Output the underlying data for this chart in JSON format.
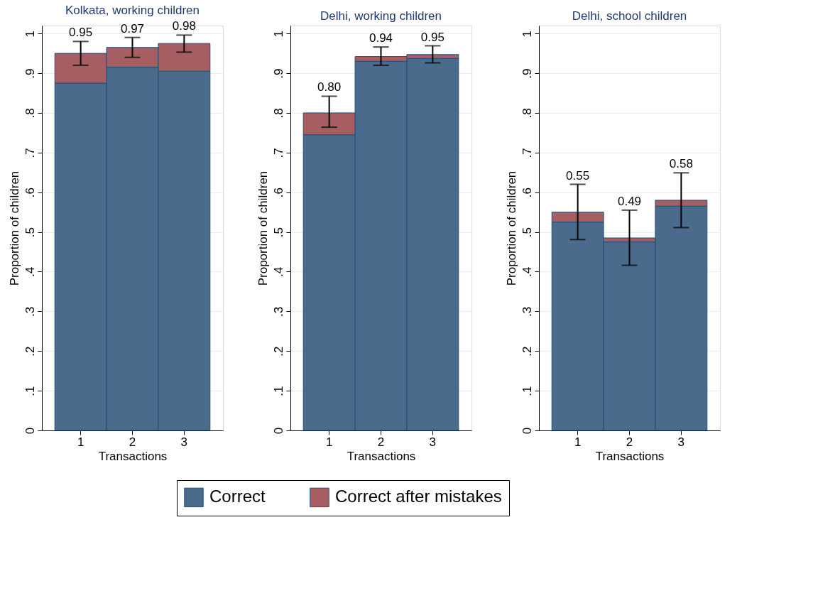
{
  "chart_data": [
    {
      "type": "bar",
      "title": "Kolkata, working children",
      "xlabel": "Transactions",
      "ylabel": "Proportion of children",
      "categories": [
        "1",
        "2",
        "3"
      ],
      "stacked": true,
      "legend": "bottom",
      "grid": "y",
      "ylim": [
        0,
        1.02
      ],
      "yticks": [
        0,
        {
          "value": 0.1,
          "label": ".1"
        },
        {
          "value": 0.2,
          "label": ".2"
        },
        {
          "value": 0.3,
          "label": ".3"
        },
        {
          "value": 0.4,
          "label": ".4"
        },
        {
          "value": 0.5,
          "label": ".5"
        },
        {
          "value": 0.6,
          "label": ".6"
        },
        {
          "value": 0.7,
          "label": ".7"
        },
        {
          "value": 0.8,
          "label": ".8"
        },
        {
          "value": 0.9,
          "label": ".9"
        },
        1
      ],
      "series": [
        {
          "name": "Correct",
          "color": "#4a6b8c",
          "values": [
            0.875,
            0.915,
            0.905
          ]
        },
        {
          "name": "Correct after mistakes",
          "color": "#a65e62",
          "values": [
            0.075,
            0.05,
            0.07
          ],
          "errors": [
            [
              0.92,
              0.98
            ],
            [
              0.94,
              0.99
            ],
            [
              0.953,
              0.996
            ]
          ]
        }
      ],
      "totals": [
        "0.95",
        "0.97",
        "0.98"
      ]
    },
    {
      "type": "bar",
      "title": "Delhi, working children",
      "xlabel": "Transactions",
      "ylabel": "Proportion of children",
      "categories": [
        "1",
        "2",
        "3"
      ],
      "stacked": true,
      "grid": "y",
      "ylim": [
        0,
        1.02
      ],
      "yticks": [
        0,
        {
          "value": 0.1,
          "label": ".1"
        },
        {
          "value": 0.2,
          "label": ".2"
        },
        {
          "value": 0.3,
          "label": ".3"
        },
        {
          "value": 0.4,
          "label": ".4"
        },
        {
          "value": 0.5,
          "label": ".5"
        },
        {
          "value": 0.6,
          "label": ".6"
        },
        {
          "value": 0.7,
          "label": ".7"
        },
        {
          "value": 0.8,
          "label": ".8"
        },
        {
          "value": 0.9,
          "label": ".9"
        },
        1
      ],
      "series": [
        {
          "color": "#4a6b8c",
          "values": [
            0.745,
            0.93,
            0.937
          ]
        },
        {
          "color": "#a65e62",
          "values": [
            0.055,
            0.012,
            0.01
          ],
          "errors": [
            [
              0.764,
              0.842
            ],
            [
              0.92,
              0.966
            ],
            [
              0.926,
              0.969
            ]
          ]
        }
      ],
      "totals": [
        "0.80",
        "0.94",
        "0.95"
      ]
    },
    {
      "type": "bar",
      "title": "Delhi, school children",
      "xlabel": "Transactions",
      "ylabel": "Proportion of children",
      "categories": [
        "1",
        "2",
        "3"
      ],
      "stacked": true,
      "grid": "y",
      "ylim": [
        0,
        1.02
      ],
      "yticks": [
        0,
        {
          "value": 0.1,
          "label": ".1"
        },
        {
          "value": 0.2,
          "label": ".2"
        },
        {
          "value": 0.3,
          "label": ".3"
        },
        {
          "value": 0.4,
          "label": ".4"
        },
        {
          "value": 0.5,
          "label": ".5"
        },
        {
          "value": 0.6,
          "label": ".6"
        },
        {
          "value": 0.7,
          "label": ".7"
        },
        {
          "value": 0.8,
          "label": ".8"
        },
        {
          "value": 0.9,
          "label": ".9"
        },
        1
      ],
      "series": [
        {
          "color": "#4a6b8c",
          "values": [
            0.525,
            0.475,
            0.565
          ]
        },
        {
          "color": "#a65e62",
          "values": [
            0.025,
            0.01,
            0.015
          ],
          "errors": [
            [
              0.481,
              0.62
            ],
            [
              0.416,
              0.555
            ],
            [
              0.511,
              0.649
            ]
          ]
        }
      ],
      "totals": [
        "0.55",
        "0.49",
        "0.58"
      ]
    }
  ]
}
